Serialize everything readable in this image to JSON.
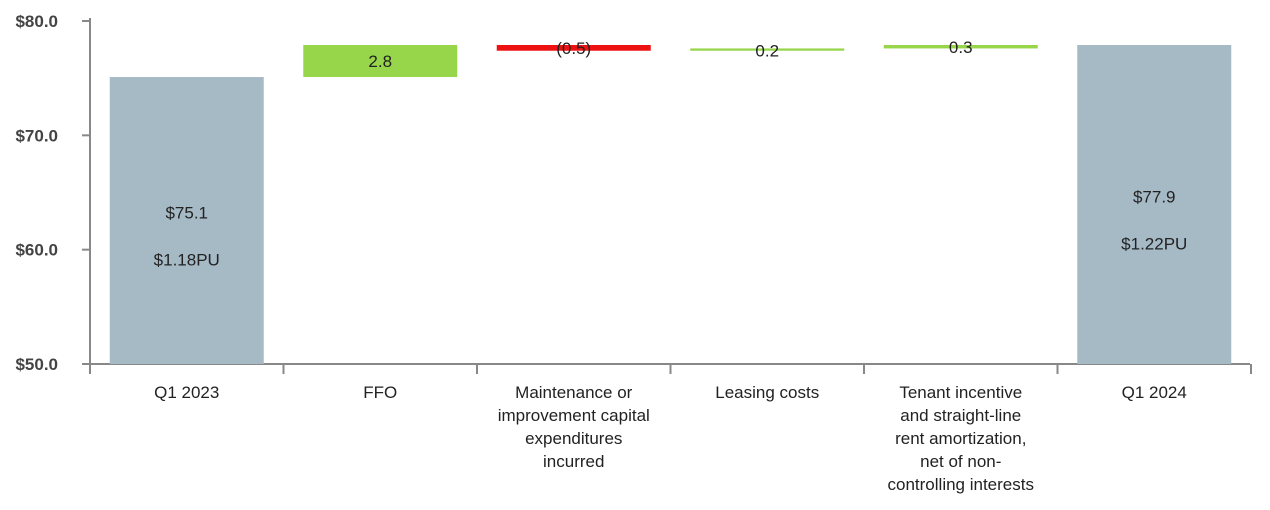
{
  "chart_data": {
    "type": "bar",
    "subtype": "waterfall",
    "categories": [
      "Q1 2023",
      "FFO",
      "Maintenance or improvement capital expenditures incurred",
      "Leasing costs",
      "Tenant incentive and straight-line rent amortization, net of non-controlling interests",
      "Q1 2024"
    ],
    "category_lines": [
      [
        "Q1 2023"
      ],
      [
        "FFO"
      ],
      [
        "Maintenance or",
        "improvement capital",
        "expenditures",
        "incurred"
      ],
      [
        "Leasing costs"
      ],
      [
        "Tenant incentive",
        "and straight-line",
        "rent amortization,",
        "net of non-",
        "controlling interests"
      ],
      [
        "Q1 2024"
      ]
    ],
    "values": [
      75.1,
      2.8,
      -0.5,
      0.2,
      0.3,
      77.9
    ],
    "bar_kinds": [
      "total",
      "delta",
      "delta",
      "delta",
      "delta",
      "total"
    ],
    "value_labels": [
      "$75.1",
      "2.8",
      "(0.5)",
      "0.2",
      "0.3",
      "$77.9"
    ],
    "secondary_labels": [
      "$1.18PU",
      "",
      "",
      "",
      "",
      "$1.22PU"
    ],
    "ylim": [
      50,
      80
    ],
    "yticks": [
      50,
      60,
      70,
      80
    ],
    "ytick_labels": [
      "$50.0",
      "$60.0",
      "$70.0",
      "$80.0"
    ],
    "title": "",
    "xlabel": "",
    "ylabel": "",
    "grid": false,
    "colors": {
      "total": "#a6bac6",
      "increase": "#97d54a",
      "decrease": "#ee1111",
      "axis": "#888888"
    }
  }
}
